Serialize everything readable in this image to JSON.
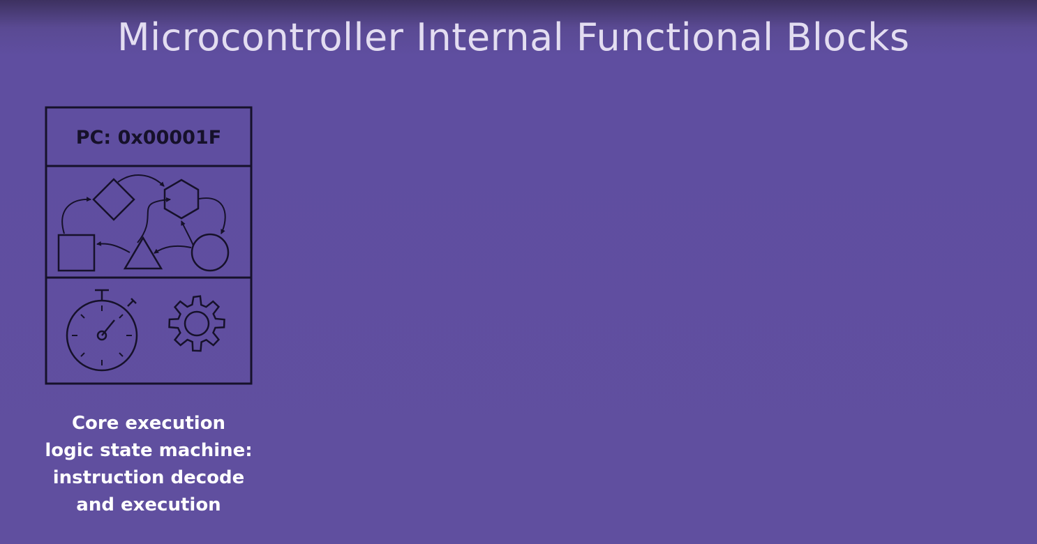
{
  "slide": {
    "title": "Microcontroller Internal Functional Blocks"
  },
  "core_block": {
    "pc_label": "PC: 0x00001F",
    "state_shapes": [
      "diamond-icon",
      "hexagon-icon",
      "square-icon",
      "triangle-icon",
      "circle-icon"
    ],
    "icons": [
      "stopwatch-icon",
      "gear-icon"
    ],
    "caption_lines": [
      "Core execution",
      "logic state machine:",
      "instruction decode",
      "and execution"
    ]
  },
  "colors": {
    "background": "#604f9f",
    "title": "#e3ddf1",
    "outline": "#16112a",
    "caption": "#ffffff"
  }
}
